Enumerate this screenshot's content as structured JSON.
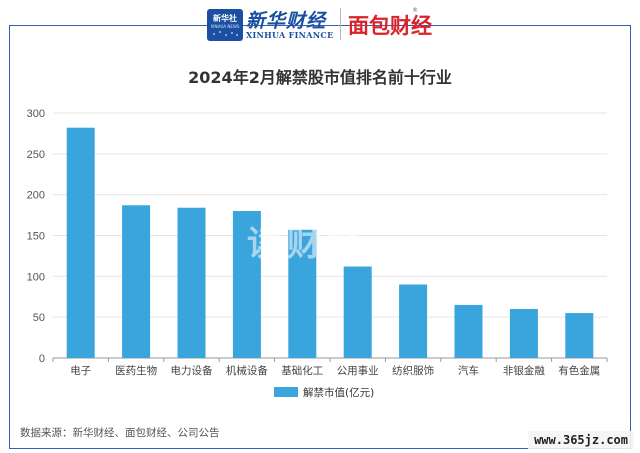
{
  "header": {
    "xinhua_logo_cn": "新华社",
    "xinhua_logo_en": "XINHUA NEWS",
    "xinhua_finance_cn": "新华财经",
    "xinhua_finance_en": "XINHUA FINANCE",
    "mianbao_logo": "面包财经",
    "registered_mark": "®"
  },
  "watermark": "读财报",
  "source": "数据来源：新华财经、面包财经、公司公告",
  "site_watermark": "www.365jz.com",
  "colors": {
    "bar": "#3aa4dc",
    "frame": "#2c63b4",
    "grid": "#e6e6e6"
  },
  "chart_data": {
    "type": "bar",
    "title": "2024年2月解禁股市值排名前十行业",
    "categories": [
      "电子",
      "医药生物",
      "电力设备",
      "机械设备",
      "基础化工",
      "公用事业",
      "纺织服饰",
      "汽车",
      "非银金融",
      "有色金属"
    ],
    "series": [
      {
        "name": "解禁市值(亿元)",
        "values": [
          282,
          187,
          184,
          180,
          157,
          112,
          90,
          65,
          60,
          55
        ]
      }
    ],
    "ylim": [
      0,
      300
    ],
    "yticks": [
      "0",
      "50",
      "100",
      "150",
      "200",
      "250",
      "300"
    ],
    "grid": true,
    "legend_position": "bottom"
  }
}
